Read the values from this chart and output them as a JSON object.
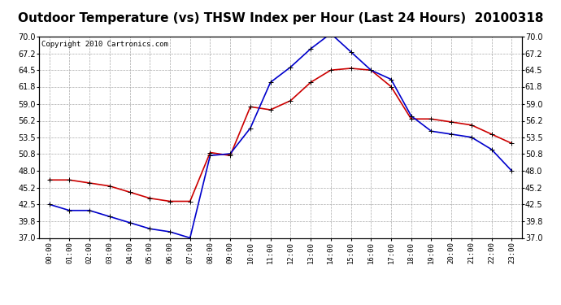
{
  "title": "Outdoor Temperature (vs) THSW Index per Hour (Last 24 Hours)  20100318",
  "copyright": "Copyright 2010 Cartronics.com",
  "hours": [
    "00:00",
    "01:00",
    "02:00",
    "03:00",
    "04:00",
    "05:00",
    "06:00",
    "07:00",
    "08:00",
    "09:00",
    "10:00",
    "11:00",
    "12:00",
    "13:00",
    "14:00",
    "15:00",
    "16:00",
    "17:00",
    "18:00",
    "19:00",
    "20:00",
    "21:00",
    "22:00",
    "23:00"
  ],
  "temp": [
    46.5,
    46.5,
    46.0,
    45.5,
    44.5,
    43.5,
    43.0,
    43.0,
    51.0,
    50.5,
    58.5,
    58.0,
    59.5,
    62.5,
    64.5,
    64.8,
    64.5,
    61.8,
    56.5,
    56.5,
    56.0,
    55.5,
    54.0,
    52.5
  ],
  "thsw": [
    42.5,
    41.5,
    41.5,
    40.5,
    39.5,
    38.5,
    38.0,
    37.0,
    50.5,
    50.8,
    55.0,
    62.5,
    65.0,
    68.0,
    70.5,
    67.5,
    64.5,
    63.0,
    57.0,
    54.5,
    54.0,
    53.5,
    51.5,
    48.0
  ],
  "temp_color": "#cc0000",
  "thsw_color": "#0000cc",
  "ylim": [
    37.0,
    70.0
  ],
  "yticks": [
    37.0,
    39.8,
    42.5,
    45.2,
    48.0,
    50.8,
    53.5,
    56.2,
    59.0,
    61.8,
    64.5,
    67.2,
    70.0
  ],
  "bg_color": "#ffffff",
  "grid_color": "#aaaaaa",
  "title_fontsize": 11,
  "copyright_fontsize": 6.5,
  "marker": "+",
  "marker_size": 5,
  "linewidth": 1.2
}
